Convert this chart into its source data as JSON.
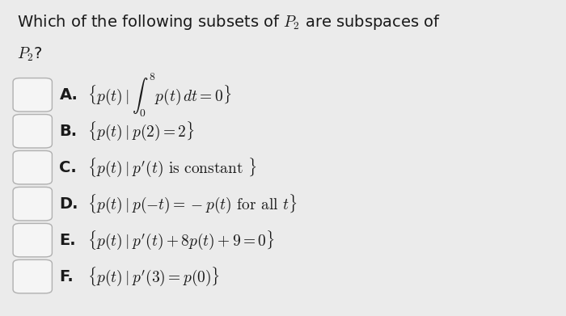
{
  "background_color": "#ebebeb",
  "checkbox_face": "#f5f5f5",
  "checkbox_edge": "#b0b0b0",
  "text_color": "#1a1a1a",
  "title_fontsize": 14,
  "item_fontsize": 14,
  "items": [
    {
      "label": "A.",
      "text": "$\\{p(t)\\mid\\int_0^8 p(t)\\,dt=0\\}$"
    },
    {
      "label": "B.",
      "text": "$\\{p(t)\\mid p(2)=2\\}$"
    },
    {
      "label": "C.",
      "text": "$\\{p(t)\\mid p'(t)\\text{ is constant }\\}$"
    },
    {
      "label": "D.",
      "text": "$\\{p(t)\\mid p(-t)=-p(t)\\text{ for all }t\\}$"
    },
    {
      "label": "E.",
      "text": "$\\{p(t)\\mid p'(t)+8p(t)+9=0\\}$"
    },
    {
      "label": "F.",
      "text": "$\\{p(t)\\mid p'(3)=p(0)\\}$"
    }
  ]
}
